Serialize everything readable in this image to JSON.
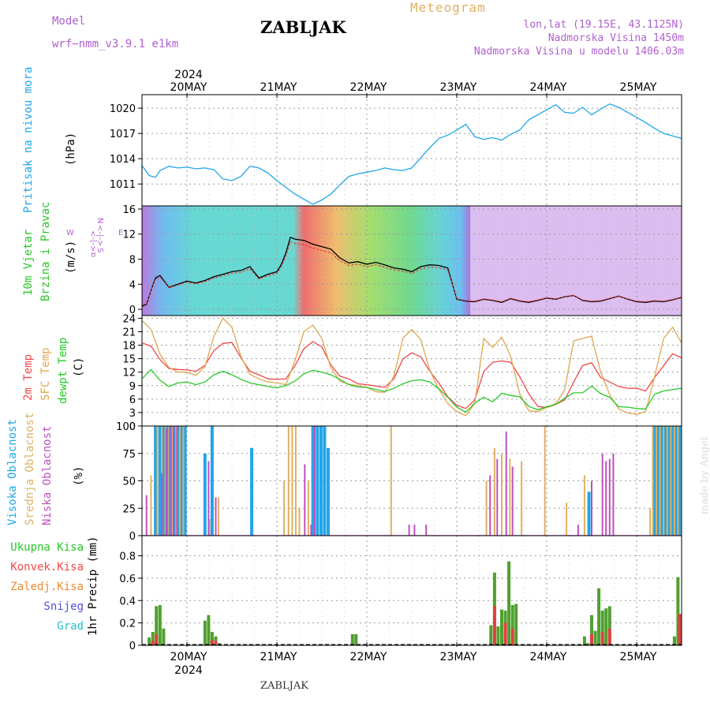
{
  "header": {
    "model_label": "Model",
    "model_name": "wrf−nmm_v3.9.1  e1km",
    "station": "ZABLJAK",
    "title": "Meteogram",
    "lonlat": "lon,lat (19.15E, 43.1125N)",
    "altitude": "Nadmorska Visina 1450m",
    "model_altitude": "Nadmorska Visina u modelu 1406.03m",
    "footer_station": "ZABLJAK",
    "credit": "made by Angel"
  },
  "time_axis": {
    "year": "2024",
    "day_labels": [
      "20MAY",
      "21MAY",
      "22MAY",
      "23MAY",
      "24MAY",
      "25MAY"
    ],
    "range_days": [
      -0.5,
      5.5
    ]
  },
  "colors": {
    "pressure": "#22a5e8",
    "t2m": "#f04848",
    "sfc": "#e0a850",
    "dew": "#28c828",
    "grid": "#9a9a9a",
    "high": "#22a5e8",
    "mid": "#e0b060",
    "low": "#c050c0",
    "total": "#50a030",
    "convective": "#e04040"
  },
  "chart_data": [
    {
      "type": "line",
      "panel": "pressure",
      "labels": [
        "Pritisak na nivou mora",
        "(hPa)"
      ],
      "yticks": [
        1011,
        1014,
        1017,
        1020
      ],
      "ylim": [
        1008.4,
        1021.6
      ],
      "series": [
        {
          "name": "",
          "x": [
            -0.5,
            -0.42,
            -0.35,
            -0.3,
            -0.2,
            -0.1,
            0,
            0.1,
            0.2,
            0.3,
            0.4,
            0.5,
            0.6,
            0.7,
            0.8,
            0.9,
            1,
            1.1,
            1.2,
            1.3,
            1.4,
            1.5,
            1.6,
            1.7,
            1.8,
            1.9,
            2,
            2.1,
            2.2,
            2.3,
            2.4,
            2.5,
            2.6,
            2.7,
            2.8,
            2.9,
            3,
            3.1,
            3.2,
            3.3,
            3.4,
            3.5,
            3.6,
            3.7,
            3.8,
            3.9,
            4,
            4.1,
            4.2,
            4.3,
            4.4,
            4.5,
            4.6,
            4.7,
            4.8,
            4.9,
            5,
            5.1,
            5.2,
            5.3,
            5.4,
            5.5
          ],
          "values": [
            1013.2,
            1012,
            1011.8,
            1012.6,
            1013.1,
            1012.9,
            1013,
            1012.8,
            1012.9,
            1012.7,
            1011.6,
            1011.4,
            1011.9,
            1013.1,
            1012.9,
            1012.3,
            1011.4,
            1010.6,
            1009.8,
            1009.2,
            1008.6,
            1009.1,
            1009.8,
            1010.9,
            1011.9,
            1012.2,
            1012.4,
            1012.6,
            1012.9,
            1012.7,
            1012.6,
            1012.9,
            1014.1,
            1015.3,
            1016.4,
            1016.8,
            1017.4,
            1018.1,
            1016.6,
            1016.3,
            1016.5,
            1016.2,
            1016.9,
            1017.4,
            1018.6,
            1019.2,
            1019.8,
            1020.4,
            1019.5,
            1019.4,
            1020.1,
            1019.2,
            1019.9,
            1020.5,
            1020.1,
            1019.5,
            1018.9,
            1018.3,
            1017.6,
            1017,
            1016.7,
            1016.4
          ]
        }
      ]
    },
    {
      "type": "line",
      "panel": "wind",
      "labels": [
        "10m Vjetar",
        "Brzina i Pravac",
        "(m/s)"
      ],
      "compass": {
        "n": "N",
        "s": "S",
        "e": "E",
        "w": "W",
        "arrow": "<-|->",
        "alpha": "α<-|->"
      },
      "yticks": [
        0,
        4,
        8,
        12,
        16
      ],
      "ylim": [
        -1,
        16.5
      ],
      "series": [
        {
          "name": "",
          "x": [
            -0.5,
            -0.45,
            -0.4,
            -0.35,
            -0.3,
            -0.2,
            -0.1,
            0,
            0.1,
            0.2,
            0.3,
            0.4,
            0.5,
            0.6,
            0.7,
            0.8,
            0.9,
            1,
            1.05,
            1.1,
            1.15,
            1.2,
            1.3,
            1.4,
            1.5,
            1.6,
            1.7,
            1.8,
            1.9,
            2,
            2.1,
            2.2,
            2.3,
            2.4,
            2.5,
            2.6,
            2.7,
            2.8,
            2.9,
            3,
            3.1,
            3.2,
            3.3,
            3.4,
            3.5,
            3.6,
            3.7,
            3.8,
            3.9,
            4,
            4.1,
            4.2,
            4.3,
            4.4,
            4.5,
            4.6,
            4.7,
            4.8,
            4.9,
            5,
            5.1,
            5.2,
            5.3,
            5.4,
            5.5
          ],
          "values": [
            0.5,
            0.8,
            3,
            5,
            5.4,
            3.5,
            4,
            4.5,
            4.2,
            4.6,
            5.2,
            5.6,
            6,
            6.2,
            6.8,
            5,
            5.6,
            6,
            7.2,
            9,
            11.5,
            11.2,
            11,
            10.4,
            10,
            9.6,
            8.2,
            7.4,
            7.6,
            7.2,
            7.5,
            7.1,
            6.6,
            6.4,
            6,
            6.8,
            7.1,
            7,
            6.6,
            1.6,
            1.3,
            1.2,
            1.6,
            1.4,
            1.1,
            1.7,
            1.3,
            1.1,
            1.4,
            1.8,
            1.6,
            2,
            2.2,
            1.4,
            1.2,
            1.3,
            1.7,
            2.1,
            1.6,
            1.2,
            1.1,
            1.3,
            1.2,
            1.5,
            1.9
          ]
        }
      ]
    },
    {
      "type": "line",
      "panel": "temperature",
      "labels": [
        "2m Temp",
        "SFC Temp",
        "dewpt Temp",
        "(C)"
      ],
      "yticks": [
        0,
        3,
        6,
        9,
        12,
        15,
        18,
        21,
        24
      ],
      "ylim": [
        0,
        24.6
      ],
      "series": [
        {
          "name": "2m Temp",
          "x": [
            -0.5,
            -0.4,
            -0.3,
            -0.2,
            -0.1,
            0,
            0.1,
            0.2,
            0.3,
            0.4,
            0.5,
            0.6,
            0.7,
            0.8,
            0.9,
            1,
            1.1,
            1.2,
            1.3,
            1.4,
            1.5,
            1.6,
            1.7,
            1.8,
            1.9,
            2,
            2.1,
            2.2,
            2.3,
            2.4,
            2.5,
            2.6,
            2.7,
            2.8,
            2.9,
            3,
            3.1,
            3.2,
            3.3,
            3.4,
            3.5,
            3.6,
            3.7,
            3.8,
            3.9,
            4,
            4.1,
            4.2,
            4.3,
            4.4,
            4.5,
            4.6,
            4.7,
            4.8,
            4.9,
            5,
            5.1,
            5.2,
            5.3,
            5.4,
            5.5
          ],
          "values": [
            18.5,
            17.8,
            14.8,
            12.8,
            12.6,
            12.5,
            12.2,
            13.5,
            16.8,
            18.4,
            18.6,
            15.2,
            12.2,
            11.4,
            10.5,
            10.4,
            10.5,
            13.4,
            17.2,
            18.8,
            17.6,
            13.6,
            11.1,
            10.5,
            9.4,
            9.2,
            8.9,
            8.6,
            10.5,
            14.9,
            16.3,
            15.4,
            12.2,
            9.6,
            6.5,
            4.6,
            3.9,
            5.8,
            12.1,
            14.2,
            14.5,
            14.2,
            11,
            7.2,
            4.4,
            4.1,
            4.8,
            5.8,
            9.8,
            13.5,
            14.1,
            10.8,
            9.8,
            8.8,
            8.4,
            8.4,
            7.8,
            10.8,
            13.4,
            16.1,
            15.2
          ]
        },
        {
          "name": "SFC Temp",
          "x": [
            -0.5,
            -0.4,
            -0.3,
            -0.2,
            -0.1,
            0,
            0.1,
            0.2,
            0.3,
            0.4,
            0.5,
            0.6,
            0.7,
            0.8,
            0.9,
            1,
            1.1,
            1.2,
            1.3,
            1.4,
            1.5,
            1.6,
            1.7,
            1.8,
            1.9,
            2,
            2.1,
            2.2,
            2.3,
            2.4,
            2.5,
            2.6,
            2.7,
            2.8,
            2.9,
            3,
            3.1,
            3.2,
            3.3,
            3.4,
            3.5,
            3.6,
            3.7,
            3.8,
            3.9,
            4,
            4.1,
            4.2,
            4.3,
            4.4,
            4.5,
            4.6,
            4.7,
            4.8,
            4.9,
            5,
            5.1,
            5.2,
            5.3,
            5.4,
            5.5
          ],
          "values": [
            23.5,
            21.5,
            16,
            13,
            12,
            12,
            11.3,
            13.2,
            20,
            24,
            22,
            15.5,
            11.5,
            10.5,
            9.8,
            9.6,
            9.2,
            14.5,
            21,
            22.5,
            19.5,
            13,
            10,
            9.3,
            9,
            8.6,
            7.6,
            7.5,
            11,
            19.5,
            21.5,
            19.2,
            12.4,
            8.2,
            5,
            3.2,
            2.3,
            5,
            19.5,
            17.5,
            19.8,
            15.5,
            7.2,
            3.4,
            3.2,
            4.1,
            5,
            8,
            19,
            19.5,
            20,
            12,
            7,
            3.8,
            2.9,
            2.6,
            3.2,
            11,
            19.5,
            22,
            18.5
          ]
        },
        {
          "name": "dewpt Temp",
          "x": [
            -0.5,
            -0.4,
            -0.3,
            -0.2,
            -0.1,
            0,
            0.1,
            0.2,
            0.3,
            0.4,
            0.5,
            0.6,
            0.7,
            0.8,
            0.9,
            1,
            1.1,
            1.2,
            1.3,
            1.4,
            1.5,
            1.6,
            1.7,
            1.8,
            1.9,
            2,
            2.1,
            2.2,
            2.3,
            2.4,
            2.5,
            2.6,
            2.7,
            2.8,
            2.9,
            3,
            3.1,
            3.2,
            3.3,
            3.4,
            3.5,
            3.6,
            3.7,
            3.8,
            3.9,
            4,
            4.1,
            4.2,
            4.3,
            4.4,
            4.5,
            4.6,
            4.7,
            4.8,
            4.9,
            5,
            5.1,
            5.2,
            5.3,
            5.4,
            5.5
          ],
          "values": [
            10.5,
            12.6,
            10.2,
            8.8,
            9.6,
            9.8,
            9.2,
            9.8,
            11.4,
            12.2,
            11.4,
            10.4,
            9.6,
            9.2,
            8.8,
            8.5,
            9,
            10,
            11.6,
            12.4,
            12,
            11.4,
            10.4,
            9.2,
            8.7,
            8.6,
            8.1,
            7.7,
            8.4,
            9.4,
            10.1,
            10.3,
            9.8,
            8.3,
            6.4,
            4.2,
            3.1,
            5.1,
            6.4,
            5.4,
            7.3,
            6.8,
            6.5,
            4.4,
            3.6,
            4.3,
            4.8,
            6.2,
            7.4,
            7.4,
            8.9,
            7.2,
            6.4,
            4.3,
            4.2,
            3.9,
            3.8,
            7.1,
            7.8,
            8.1,
            8.4
          ]
        }
      ]
    },
    {
      "type": "bar",
      "panel": "clouds",
      "labels": [
        "Visoka Oblacnost",
        "Srednja Oblacnost",
        "Niska Oblacnost",
        "(%)"
      ],
      "yticks": [
        0,
        25,
        50,
        75,
        100
      ],
      "ylim": [
        0,
        100
      ],
      "series": [
        {
          "name": "Visoka Oblacnost",
          "x": [
            -0.35,
            -0.3,
            -0.26,
            -0.22,
            -0.18,
            -0.14,
            -0.1,
            -0.06,
            -0.02,
            0.2,
            0.28,
            0.72,
            1.4,
            1.45,
            1.49,
            1.53,
            1.57,
            4.47,
            5.2,
            5.24,
            5.28,
            5.32,
            5.36,
            5.4,
            5.44,
            5.48
          ],
          "values": [
            100,
            100,
            100,
            100,
            100,
            100,
            100,
            100,
            100,
            75,
            100,
            80,
            100,
            100,
            100,
            100,
            80,
            40,
            100,
            100,
            100,
            100,
            100,
            100,
            100,
            100
          ]
        },
        {
          "name": "Srednja Oblacnost",
          "x": [
            -0.4,
            -0.33,
            -0.28,
            -0.24,
            -0.2,
            -0.16,
            -0.12,
            -0.08,
            -0.04,
            0.25,
            0.35,
            1.08,
            1.13,
            1.17,
            1.21,
            1.25,
            1.35,
            2.27,
            3.33,
            3.42,
            3.5,
            3.59,
            3.72,
            3.98,
            4.22,
            4.42,
            5.15,
            5.18,
            5.22,
            5.26,
            5.3,
            5.34,
            5.38,
            5.42,
            5.46,
            5.5
          ],
          "values": [
            55,
            100,
            100,
            100,
            100,
            100,
            100,
            100,
            100,
            15,
            35,
            50,
            100,
            100,
            100,
            25,
            50,
            100,
            50,
            80,
            75,
            70,
            68,
            100,
            30,
            55,
            25,
            100,
            100,
            100,
            100,
            100,
            100,
            100,
            100,
            100
          ]
        },
        {
          "name": "Niska Oblacnost",
          "x": [
            -0.45,
            -0.28,
            -0.23,
            -0.19,
            -0.15,
            -0.11,
            0.24,
            0.32,
            1.31,
            1.38,
            1.42,
            2.47,
            2.53,
            2.66,
            3.37,
            3.45,
            3.55,
            3.62,
            4.35,
            4.5,
            4.62,
            4.66,
            4.7,
            4.74,
            5.53
          ],
          "values": [
            37,
            57,
            98,
            100,
            100,
            100,
            68,
            35,
            65,
            10,
            100,
            10,
            10,
            10,
            55,
            70,
            95,
            63,
            10,
            50,
            75,
            68,
            70,
            75,
            95
          ]
        }
      ]
    },
    {
      "type": "bar",
      "panel": "precipitation",
      "labels": [
        "Ukupna Kisa",
        "Konvek.Kisa",
        "Zaledj.Kisa",
        "Snijeg",
        "Grad",
        "1hr Precip (mm)"
      ],
      "yticks": [
        0,
        0.2,
        0.4,
        0.6,
        0.8
      ],
      "ylim": [
        0,
        0.98
      ],
      "series": [
        {
          "name": "Ukupna Kisa",
          "x": [
            -0.42,
            -0.38,
            -0.34,
            -0.3,
            -0.26,
            0.2,
            0.24,
            0.28,
            0.32,
            0.36,
            1.84,
            1.88,
            3.38,
            3.42,
            3.46,
            3.5,
            3.54,
            3.58,
            3.62,
            3.66,
            4.42,
            4.46,
            4.5,
            4.54,
            4.58,
            4.62,
            4.66,
            4.7,
            5.42,
            5.46
          ],
          "values": [
            0.07,
            0.12,
            0.35,
            0.36,
            0.15,
            0.22,
            0.27,
            0.12,
            0.08,
            0.02,
            0.1,
            0.1,
            0.18,
            0.65,
            0.17,
            0.32,
            0.31,
            0.75,
            0.36,
            0.37,
            0.08,
            0.02,
            0.27,
            0.13,
            0.51,
            0.31,
            0.33,
            0.35,
            0.08,
            0.61
          ]
        },
        {
          "name": "Konvek.Kisa",
          "x": [
            -0.38,
            -0.34,
            0.28,
            0.32,
            3.42,
            3.54,
            3.62,
            4.5,
            4.62,
            4.7,
            5.48
          ],
          "values": [
            0.04,
            0.1,
            0.05,
            0.04,
            0.35,
            0.2,
            0.15,
            0.1,
            0.12,
            0.15,
            0.28
          ]
        }
      ]
    }
  ]
}
